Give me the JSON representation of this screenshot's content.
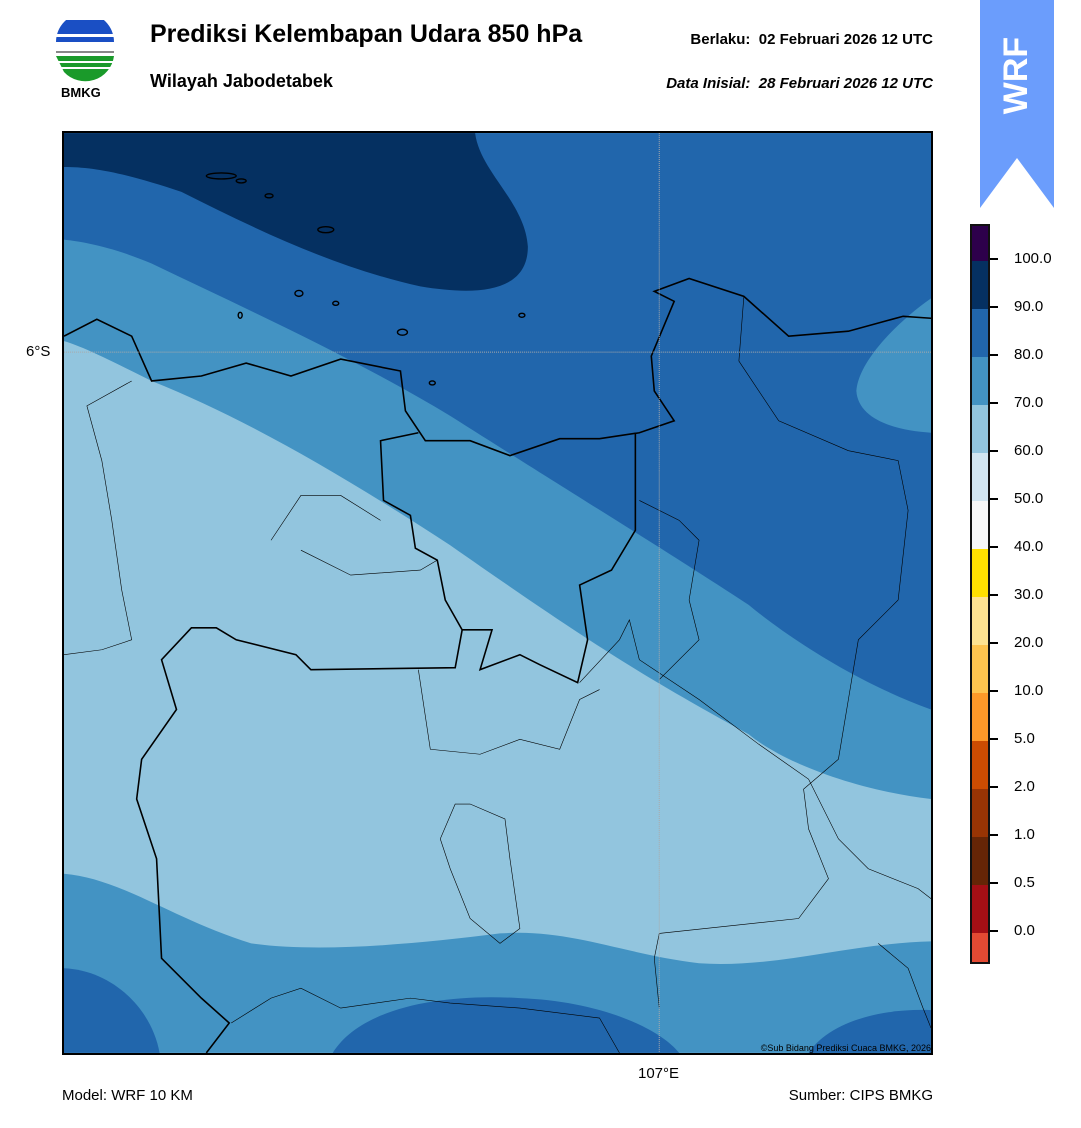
{
  "header": {
    "title": "Prediksi Kelembapan Udara 850 hPa",
    "subtitle": "Wilayah Jabodetabek",
    "valid": "Berlaku:  02 Februari 2026 12 UTC",
    "initial": "Data Inisial:  28 Februari 2026 12 UTC",
    "logo_text": "BMKG",
    "banner": "WRF"
  },
  "map": {
    "lat_label": "6°S",
    "lon_label": "107°E",
    "copyright": "©Sub Bidang Prediksi Cuaca BMKG, 2026",
    "colors": {
      "navy": "#053061",
      "blue": "#2166ac",
      "mid": "#4393c3",
      "light": "#92c5de"
    }
  },
  "colorbar": {
    "colors": [
      "#2d004b",
      "#053061",
      "#2166ac",
      "#4393c3",
      "#92c5de",
      "#d1e5f0",
      "#f7f7f7",
      "#ffe000",
      "#fee391",
      "#fec44f",
      "#fe9929",
      "#cc4c02",
      "#993404",
      "#662506",
      "#a50f15",
      "#e34a33"
    ],
    "ticks": [
      "100.0",
      "90.0",
      "80.0",
      "70.0",
      "60.0",
      "50.0",
      "40.0",
      "30.0",
      "20.0",
      "10.0",
      "5.0",
      "2.0",
      "1.0",
      "0.5",
      "0.0"
    ]
  },
  "footer": {
    "model": "Model: WRF 10 KM",
    "source": "Sumber: CIPS BMKG"
  }
}
